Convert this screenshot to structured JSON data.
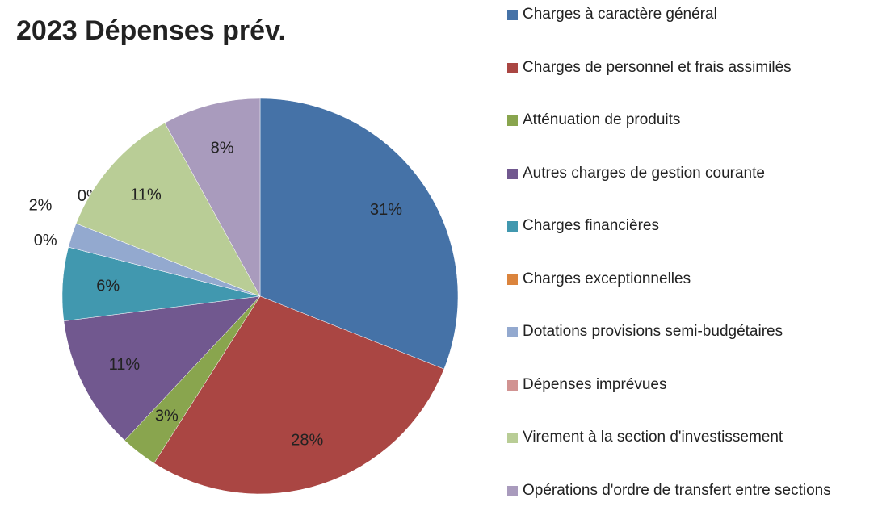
{
  "chart_data": {
    "type": "pie",
    "title": "2023 Dépenses prév.",
    "categories": [
      "Charges à caractère général",
      "Charges de personnel et frais assimilés",
      "Atténuation de produits",
      "Autres charges de gestion courante",
      "Charges financières",
      "Charges exceptionnelles",
      "Dotations provisions semi-budgétaires",
      "Dépenses imprévues",
      "Virement à la section d'investissement",
      "Opérations d'ordre de transfert entre sections"
    ],
    "values": [
      31,
      28,
      3,
      11,
      6,
      0,
      2,
      0,
      11,
      8
    ],
    "value_labels": [
      "31%",
      "28%",
      "3%",
      "11%",
      "6%",
      "0%",
      "2%",
      "0%",
      "11%",
      "8%"
    ],
    "colors": [
      "#4572a7",
      "#aa4643",
      "#89a54e",
      "#71588f",
      "#4198af",
      "#db843d",
      "#93a9cf",
      "#d19392",
      "#b9cd96",
      "#a99bbd"
    ],
    "legend": "right"
  }
}
